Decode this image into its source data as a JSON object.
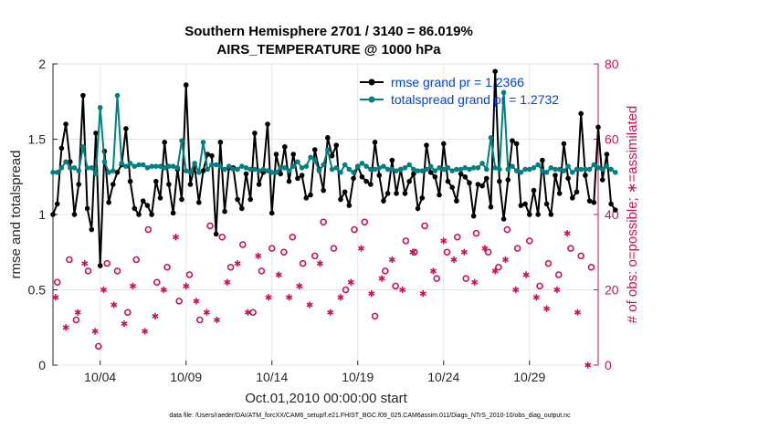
{
  "chart_data": {
    "type": "line+scatter",
    "title_line1": "Southern Hemisphere 2701 / 3140 = 86.019%",
    "title_line2": "AIRS_TEMPERATURE @ 1000 hPa",
    "xlabel": "Oct.01,2010 00:00:00 start",
    "ylabel_left": "rmse and totalspread",
    "ylabel_right": "# of obs: o=possible; ∗=assimilated",
    "x_range": [
      1.25,
      33.0
    ],
    "ylim_left": [
      0,
      2
    ],
    "ylim_right": [
      0,
      80
    ],
    "x_ticks": [
      {
        "x": 4,
        "label": "10/04"
      },
      {
        "x": 9,
        "label": "10/09"
      },
      {
        "x": 14,
        "label": "10/14"
      },
      {
        "x": 19,
        "label": "10/19"
      },
      {
        "x": 24,
        "label": "10/24"
      },
      {
        "x": 29,
        "label": "10/29"
      }
    ],
    "y_ticks_left": [
      {
        "v": 0,
        "label": "0"
      },
      {
        "v": 0.5,
        "label": "0.5"
      },
      {
        "v": 1,
        "label": "1"
      },
      {
        "v": 1.5,
        "label": "1.5"
      },
      {
        "v": 2,
        "label": "2"
      }
    ],
    "y_ticks_right": [
      {
        "v": 0,
        "label": "0"
      },
      {
        "v": 20,
        "label": "20"
      },
      {
        "v": 40,
        "label": "40"
      },
      {
        "v": 60,
        "label": "60"
      },
      {
        "v": 80,
        "label": "80"
      }
    ],
    "legend": [
      {
        "label": "rmse grand pr = 1.2366",
        "color": "#000000"
      },
      {
        "label": "totalspread grand pr = 1.2732",
        "color": "#008080"
      }
    ],
    "series": [
      {
        "name": "rmse",
        "axis": "left",
        "color": "#000000",
        "values": [
          1.0,
          1.07,
          1.44,
          1.6,
          1.35,
          1.0,
          1.2,
          1.79,
          1.04,
          0.9,
          1.54,
          0.66,
          1.42,
          1.08,
          1.2,
          1.28,
          1.33,
          1.57,
          1.22,
          1.04,
          1.0,
          1.09,
          1.06,
          1.0,
          1.22,
          1.11,
          1.48,
          1.2,
          1.01,
          1.3,
          1.1,
          1.86,
          1.2,
          1.32,
          1.08,
          1.29,
          1.4,
          1.39,
          0.87,
          1.48,
          1.02,
          1.31,
          1.31,
          1.1,
          1.04,
          1.27,
          1.1,
          1.54,
          1.2,
          1.28,
          1.6,
          1.01,
          1.4,
          1.27,
          1.45,
          1.22,
          1.4,
          1.24,
          1.26,
          1.11,
          1.13,
          1.43,
          1.3,
          1.16,
          1.51,
          1.39,
          1.46,
          1.1,
          1.15,
          1.06,
          1.24,
          1.32,
          1.25,
          1.22,
          1.2,
          1.48,
          1.26,
          1.09,
          1.14,
          1.36,
          1.14,
          1.3,
          1.14,
          1.22,
          1.27,
          1.04,
          1.11,
          1.46,
          1.28,
          1.25,
          1.13,
          1.47,
          1.22,
          1.18,
          1.09,
          1.27,
          1.25,
          1.21,
          0.99,
          1.2,
          1.19,
          1.24,
          1.05,
          1.95,
          1.22,
          0.97,
          1.23,
          1.49,
          1.47,
          1.06,
          1.07,
          1.0,
          1.16,
          1.0,
          1.36,
          1.07,
          1.0,
          1.26,
          1.14,
          1.47,
          1.24,
          1.11,
          1.15,
          1.67,
          1.26,
          1.09,
          1.08,
          1.58,
          1.23,
          1.4,
          1.07,
          1.03
        ]
      },
      {
        "name": "totalspread",
        "axis": "left",
        "color": "#008080",
        "values": [
          1.28,
          1.28,
          1.31,
          1.35,
          1.31,
          1.31,
          1.29,
          1.45,
          1.31,
          1.31,
          1.27,
          1.71,
          1.35,
          1.28,
          1.29,
          1.79,
          1.34,
          1.32,
          1.34,
          1.32,
          1.33,
          1.33,
          1.31,
          1.32,
          1.32,
          1.32,
          1.31,
          1.32,
          1.32,
          1.31,
          1.49,
          1.29,
          1.28,
          1.34,
          1.28,
          1.48,
          1.3,
          1.33,
          1.33,
          1.32,
          1.3,
          1.32,
          1.3,
          1.3,
          1.32,
          1.31,
          1.3,
          1.3,
          1.29,
          1.3,
          1.29,
          1.28,
          1.28,
          1.31,
          1.31,
          1.29,
          1.32,
          1.35,
          1.31,
          1.32,
          1.38,
          1.36,
          1.29,
          1.33,
          1.43,
          1.3,
          1.31,
          1.28,
          1.33,
          1.3,
          1.28,
          1.32,
          1.34,
          1.32,
          1.3,
          1.3,
          1.31,
          1.32,
          1.3,
          1.3,
          1.29,
          1.3,
          1.31,
          1.33,
          1.3,
          1.29,
          1.29,
          1.3,
          1.32,
          1.29,
          1.31,
          1.3,
          1.31,
          1.29,
          1.3,
          1.3,
          1.31,
          1.3,
          1.31,
          1.31,
          1.34,
          1.3,
          1.51,
          1.31,
          1.3,
          1.81,
          1.3,
          1.32,
          1.29,
          1.28,
          1.3,
          1.3,
          1.31,
          1.33,
          1.29,
          1.28,
          1.31,
          1.3,
          1.3,
          1.29,
          1.32,
          1.28,
          1.3,
          1.3,
          1.3,
          1.3,
          1.33,
          1.31,
          1.3,
          1.32,
          1.3,
          1.28
        ]
      },
      {
        "name": "obs possible",
        "axis": "right",
        "marker": "o",
        "color": "#cc1155",
        "x": [
          1.5,
          2.2,
          2.6,
          3.3,
          3.9,
          4.4,
          5.0,
          5.6,
          6.1,
          6.8,
          7.3,
          7.9,
          8.6,
          9.2,
          9.8,
          10.4,
          11.1,
          11.6,
          12.3,
          12.9,
          13.4,
          14.0,
          14.7,
          15.2,
          15.8,
          16.5,
          17.0,
          17.6,
          18.3,
          18.8,
          19.4,
          20.0,
          20.6,
          21.2,
          21.8,
          22.3,
          22.9,
          23.6,
          24.2,
          24.8,
          25.3,
          25.9,
          26.6,
          27.2,
          27.7,
          28.3,
          29.0,
          29.6,
          30.1,
          30.7,
          31.4,
          32.0,
          32.6
        ],
        "values": [
          22,
          28,
          12,
          25,
          5,
          27,
          25,
          14,
          28,
          36,
          22,
          26,
          17,
          24,
          12,
          37,
          34,
          26,
          32,
          14,
          25,
          31,
          30,
          34,
          27,
          29,
          38,
          31,
          20,
          36,
          38,
          13,
          25,
          21,
          33,
          30,
          37,
          23,
          30,
          34,
          23,
          35,
          30,
          26,
          36,
          31,
          33,
          21,
          27,
          24,
          31,
          29,
          26
        ]
      },
      {
        "name": "obs assimilated",
        "axis": "right",
        "marker": "*",
        "color": "#cc1155",
        "x": [
          1.4,
          2.0,
          2.7,
          3.1,
          3.7,
          4.2,
          4.8,
          5.4,
          5.9,
          6.6,
          7.2,
          7.7,
          8.4,
          9.0,
          9.6,
          10.2,
          10.8,
          11.4,
          12.0,
          12.6,
          13.2,
          13.8,
          14.4,
          15.0,
          15.6,
          16.2,
          16.8,
          17.4,
          18.0,
          18.6,
          19.2,
          19.8,
          20.4,
          21.0,
          21.6,
          22.2,
          22.8,
          23.4,
          24.0,
          24.6,
          25.2,
          25.8,
          26.4,
          27.0,
          27.6,
          28.2,
          28.8,
          29.4,
          30.0,
          30.6,
          31.2,
          31.8,
          32.4
        ],
        "values": [
          18,
          10,
          14,
          27,
          9,
          20,
          16,
          11,
          21,
          9,
          13,
          20,
          34,
          21,
          17,
          14,
          12,
          22,
          27,
          14,
          29,
          18,
          24,
          18,
          21,
          16,
          27,
          14,
          18,
          22,
          31,
          19,
          23,
          28,
          20,
          30,
          19,
          25,
          33,
          28,
          30,
          22,
          31,
          25,
          28,
          20,
          24,
          18,
          15,
          20,
          35,
          14,
          0
        ]
      }
    ]
  },
  "footer": "data file: /Users/raeder/DAI/ATM_forcXX/CAM6_setup/f.e21.FHIST_BGC.f09_025.CAM6assim.011/Diags_NTrS_2010-10/obs_diag_output.nc"
}
